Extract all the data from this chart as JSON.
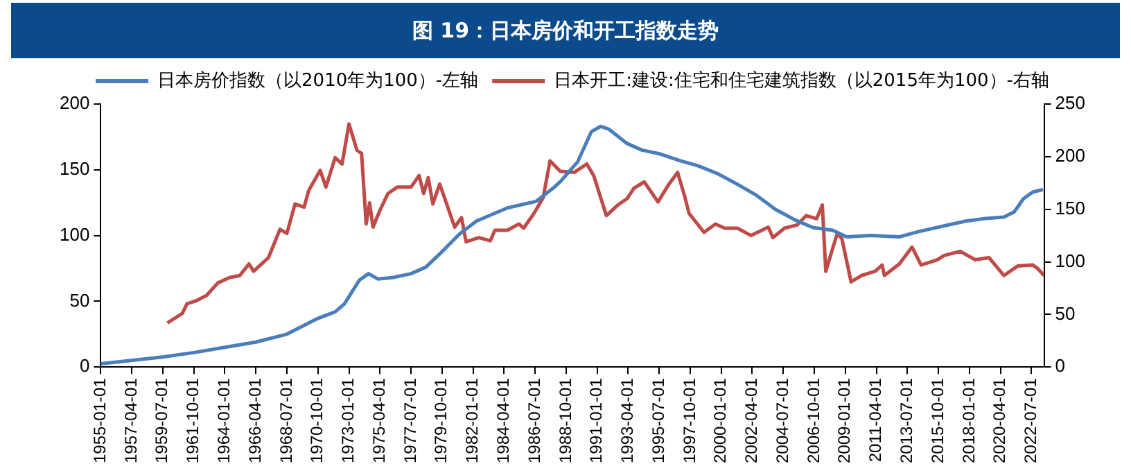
{
  "chart_data": {
    "type": "line",
    "title": "图 19：日本房价和开工指数走势",
    "legend": "top",
    "grid": false,
    "xlim": [
      "1955-01-01",
      "2023-06-01"
    ],
    "xticks": [
      "1955-01-01",
      "1957-04-01",
      "1959-07-01",
      "1961-10-01",
      "1964-01-01",
      "1966-04-01",
      "1968-07-01",
      "1970-10-01",
      "1973-01-01",
      "1975-04-01",
      "1977-07-01",
      "1979-10-01",
      "1982-01-01",
      "1984-04-01",
      "1986-07-01",
      "1988-10-01",
      "1991-01-01",
      "1993-04-01",
      "1995-07-01",
      "1997-10-01",
      "2000-01-01",
      "2002-04-01",
      "2004-07-01",
      "2006-10-01",
      "2009-01-01",
      "2011-04-01",
      "2013-07-01",
      "2015-10-01",
      "2018-01-01",
      "2020-04-01",
      "2022-07-01"
    ],
    "ylim": [
      0,
      200
    ],
    "yticks": [
      0,
      50,
      100,
      150,
      200
    ],
    "y2lim": [
      0,
      250
    ],
    "y2ticks": [
      0,
      50,
      100,
      150,
      200,
      250
    ],
    "series": [
      {
        "name": "日本房价指数（以2010年为100）-左轴",
        "color": "#4a7ebb",
        "axis": "y",
        "x": [
          "1955-01",
          "1959-07",
          "1961-10",
          "1964-01",
          "1966-04",
          "1968-07",
          "1970-10",
          "1972-01",
          "1972-09",
          "1973-10",
          "1974-06",
          "1975-02",
          "1976-03",
          "1977-07",
          "1978-08",
          "1979-08",
          "1981-01",
          "1982-04",
          "1984-07",
          "1986-08",
          "1987-12",
          "1988-05",
          "1989-08",
          "1990-08",
          "1991-04",
          "1991-11",
          "1993-03",
          "1994-04",
          "1995-08",
          "1997-01",
          "1998-05",
          "1999-10",
          "2001-03",
          "2002-07",
          "2003-12",
          "2005-05",
          "2006-09",
          "2008-02",
          "2009-02",
          "2010-11",
          "2012-12",
          "2014-05",
          "2016-06",
          "2017-10",
          "2019-03",
          "2020-07",
          "2021-04",
          "2021-12",
          "2022-08",
          "2023-05"
        ],
        "values": [
          2.5,
          7.6,
          11,
          15,
          19,
          25,
          37,
          42,
          48,
          66,
          71,
          67,
          68,
          71,
          76,
          86,
          101,
          111,
          121,
          126,
          137,
          141,
          156,
          179,
          183,
          181,
          170,
          165,
          162,
          157,
          153,
          147,
          139,
          131,
          120,
          112,
          106,
          104,
          99,
          100,
          99,
          103,
          108,
          111,
          113,
          114,
          118,
          128,
          133,
          135
        ]
      },
      {
        "name": "日本开工:建设:住宅和住宅建筑指数（以2015年为100）-右轴",
        "color": "#be4b48",
        "axis": "y2",
        "x": [
          "1959-11",
          "1960-12",
          "1961-04",
          "1961-12",
          "1962-09",
          "1963-07",
          "1964-05",
          "1965-02",
          "1965-10",
          "1966-02",
          "1967-03",
          "1968-01",
          "1968-07",
          "1969-02",
          "1969-10",
          "1970-02",
          "1970-12",
          "1971-05",
          "1972-01",
          "1972-07",
          "1973-01",
          "1973-08",
          "1973-12",
          "1974-04",
          "1974-07",
          "1974-10",
          "1975-04",
          "1975-11",
          "1976-07",
          "1977-07",
          "1978-02",
          "1978-06",
          "1978-10",
          "1979-02",
          "1979-08",
          "1980-03",
          "1980-09",
          "1981-03",
          "1981-07",
          "1982-06",
          "1983-04",
          "1983-08",
          "1984-07",
          "1985-05",
          "1985-09",
          "1986-06",
          "1987-02",
          "1987-08",
          "1988-05",
          "1989-05",
          "1990-04",
          "1990-10",
          "1991-09",
          "1992-07",
          "1993-03",
          "1993-09",
          "1994-06",
          "1995-06",
          "1996-03",
          "1996-11",
          "1997-05",
          "1997-09",
          "1998-10",
          "1999-08",
          "2000-04",
          "2001-03",
          "2002-03",
          "2003-06",
          "2003-10",
          "2004-08",
          "2005-07",
          "2006-03",
          "2006-12",
          "2007-05",
          "2007-08",
          "2008-02",
          "2008-06",
          "2008-10",
          "2009-06",
          "2010-03",
          "2011-03",
          "2011-09",
          "2011-11",
          "2012-12",
          "2013-11",
          "2014-07",
          "2015-09",
          "2016-03",
          "2017-05",
          "2018-06",
          "2019-06",
          "2020-07",
          "2021-07",
          "2022-08",
          "2022-12",
          "2023-06"
        ],
        "values": [
          42,
          51,
          60,
          63,
          68,
          80,
          85,
          87,
          98,
          91,
          104,
          131,
          127,
          155,
          152,
          168,
          187,
          171,
          199,
          193,
          231,
          206,
          203,
          136,
          156,
          133,
          149,
          165,
          171,
          171,
          182,
          165,
          180,
          155,
          174,
          152,
          133,
          142,
          119,
          123,
          120,
          130,
          130,
          136,
          132,
          146,
          161,
          196,
          186,
          185,
          193,
          182,
          144,
          154,
          160,
          170,
          176,
          157,
          173,
          185,
          163,
          146,
          128,
          136,
          132,
          132,
          125,
          133,
          123,
          132,
          135,
          144,
          141,
          154,
          91,
          113,
          127,
          122,
          81,
          87,
          91,
          97,
          87,
          98,
          114,
          97,
          102,
          106,
          110,
          102,
          104,
          87,
          96,
          97,
          94,
          87
        ]
      }
    ]
  }
}
